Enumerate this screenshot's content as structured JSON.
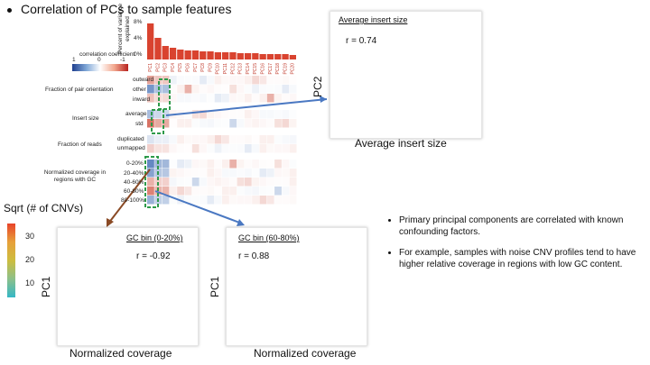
{
  "slide": {
    "title": "Correlation of PCs to sample features"
  },
  "heatmap": {
    "legend_title": "correlation coefficient",
    "legend_ticks": [
      "1",
      "0",
      "-1"
    ],
    "bar_ylabel": "Percent of variance explained",
    "bar_ticks": [
      "8%",
      "4%",
      "0%"
    ],
    "pc_labels": [
      "PC1",
      "PC2",
      "PC3",
      "PC4",
      "PC5",
      "PC6",
      "PC7",
      "PC8",
      "PC9",
      "PC10",
      "PC11",
      "PC12",
      "PC13",
      "PC14",
      "PC15",
      "PC16",
      "PC17",
      "PC18",
      "PC19",
      "PC20"
    ],
    "groups": [
      {
        "name": "Fraction of pair orientation",
        "rows": [
          "outward",
          "other",
          "inward"
        ]
      },
      {
        "name": "Insert size",
        "rows": [
          "average",
          "std"
        ]
      },
      {
        "name": "Fraction of reads",
        "rows": [
          "duplicated",
          "unmapped"
        ]
      },
      {
        "name": "Normalized coverage in regions with GC",
        "rows": [
          "0-20%",
          "20-40%",
          "40-60%",
          "60-80%",
          "80-100%"
        ]
      }
    ]
  },
  "colorbar": {
    "title": "Sqrt (# of CNVs)",
    "ticks": [
      "30",
      "20",
      "10"
    ]
  },
  "panels": {
    "top_right": {
      "label": "Average insert size",
      "r": "r = 0.74",
      "ylabel": "PC2",
      "xlabel": "Average insert size"
    },
    "bottom_left": {
      "label": "GC bin (0-20%)",
      "r": "r = -0.92",
      "ylabel": "PC1",
      "xlabel": "Normalized coverage"
    },
    "bottom_mid": {
      "label": "GC bin (60-80%)",
      "r": "r = 0.88",
      "ylabel": "PC1",
      "xlabel": "Normalized coverage"
    }
  },
  "notes": [
    "Primary principal components are correlated with known confounding factors.",
    "For example, samples with  noise CNV profiles tend to have higher relative coverage in regions with low GC content."
  ],
  "colors": {
    "bar": "#d9432f",
    "high": "#e8432a",
    "mid": "#c8b43a",
    "low": "#3bb3c3",
    "arrow_blue": "#4a78c2",
    "arrow_brown": "#8a4a25",
    "dash_green": "#2e9a4a",
    "ellipse": "#e0884a"
  }
}
